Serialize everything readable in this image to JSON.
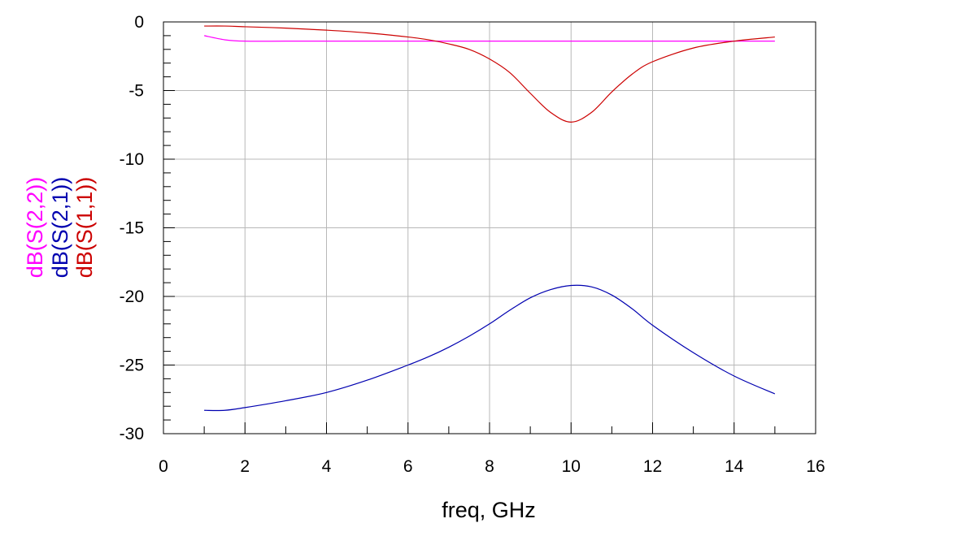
{
  "chart_data": {
    "type": "line",
    "xlabel": "freq, GHz",
    "xlim": [
      0,
      16
    ],
    "ylim": [
      -30,
      0
    ],
    "xticks": [
      0,
      2,
      4,
      6,
      8,
      10,
      12,
      14,
      16
    ],
    "yticks": [
      0,
      -5,
      -10,
      -15,
      -20,
      -25,
      -30
    ],
    "x_minor_step": 1,
    "y_minor_step": 1,
    "grid": true,
    "x": [
      1,
      1.5,
      2,
      3,
      4,
      5,
      6,
      6.5,
      7,
      7.5,
      8,
      8.5,
      9,
      9.5,
      10,
      10.5,
      11,
      11.5,
      12,
      13,
      14,
      15
    ],
    "series": [
      {
        "name": "dB(S(2,2))",
        "color": "#ff00ff",
        "values": [
          -1.0,
          -1.3,
          -1.4,
          -1.4,
          -1.4,
          -1.4,
          -1.4,
          -1.4,
          -1.4,
          -1.4,
          -1.4,
          -1.4,
          -1.4,
          -1.4,
          -1.4,
          -1.4,
          -1.4,
          -1.4,
          -1.4,
          -1.4,
          -1.4,
          -1.4
        ]
      },
      {
        "name": "dB(S(2,1))",
        "color": "#0000b0",
        "values": [
          -28.3,
          -28.3,
          -28.1,
          -27.6,
          -27.0,
          -26.1,
          -25.0,
          -24.4,
          -23.7,
          -22.9,
          -22.0,
          -21.0,
          -20.1,
          -19.5,
          -19.2,
          -19.3,
          -19.9,
          -20.9,
          -22.1,
          -24.1,
          -25.8,
          -27.1
        ]
      },
      {
        "name": "dB(S(1,1))",
        "color": "#cc0000",
        "values": [
          -0.3,
          -0.3,
          -0.35,
          -0.45,
          -0.6,
          -0.8,
          -1.1,
          -1.3,
          -1.6,
          -2.0,
          -2.7,
          -3.7,
          -5.2,
          -6.6,
          -7.3,
          -6.6,
          -5.1,
          -3.8,
          -2.9,
          -1.9,
          -1.4,
          -1.1
        ]
      }
    ]
  }
}
